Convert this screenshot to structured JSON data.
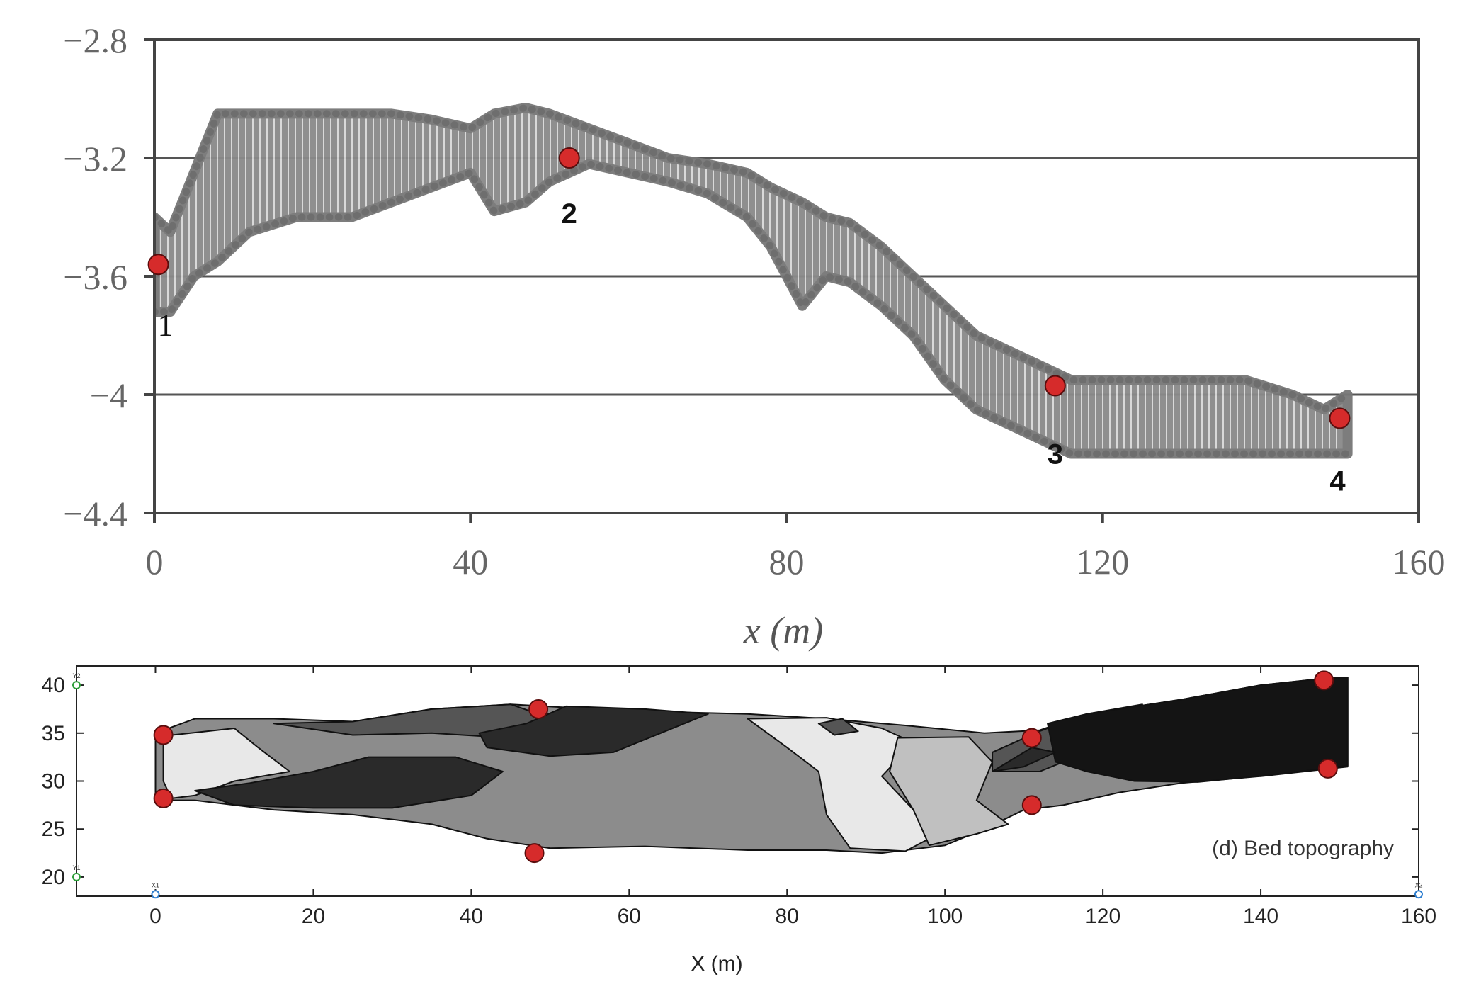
{
  "chart_data": [
    {
      "type": "scatter",
      "title": "",
      "xlabel": "x (m)",
      "ylabel": "",
      "xlim": [
        0,
        160
      ],
      "ylim": [
        -4.4,
        -2.8
      ],
      "x_ticks": [
        "0",
        "40",
        "80",
        "120",
        "160"
      ],
      "y_ticks": [
        "-2.8",
        "-3.2",
        "-3.6",
        "-4",
        "-4.4"
      ],
      "grid": "horizontal lines at -3.2, -3.6, -4",
      "profile": {
        "x": [
          0,
          2,
          5,
          8,
          12,
          18,
          25,
          30,
          35,
          40,
          43,
          47,
          50,
          55,
          60,
          65,
          70,
          75,
          78,
          82,
          85,
          88,
          92,
          96,
          100,
          104,
          108,
          112,
          116,
          120,
          126,
          132,
          138,
          144,
          148,
          151
        ],
        "upper": [
          -3.4,
          -3.45,
          -3.25,
          -3.05,
          -3.05,
          -3.05,
          -3.05,
          -3.05,
          -3.07,
          -3.1,
          -3.05,
          -3.03,
          -3.05,
          -3.1,
          -3.15,
          -3.2,
          -3.22,
          -3.25,
          -3.3,
          -3.35,
          -3.4,
          -3.42,
          -3.5,
          -3.6,
          -3.7,
          -3.8,
          -3.85,
          -3.9,
          -3.95,
          -3.95,
          -3.95,
          -3.95,
          -3.95,
          -4.0,
          -4.05,
          -4.0
        ],
        "lower": [
          -3.72,
          -3.72,
          -3.6,
          -3.55,
          -3.45,
          -3.4,
          -3.4,
          -3.35,
          -3.3,
          -3.25,
          -3.38,
          -3.35,
          -3.28,
          -3.22,
          -3.25,
          -3.28,
          -3.32,
          -3.4,
          -3.5,
          -3.7,
          -3.6,
          -3.62,
          -3.7,
          -3.8,
          -3.95,
          -4.05,
          -4.1,
          -4.15,
          -4.2,
          -4.2,
          -4.2,
          -4.2,
          -4.2,
          -4.2,
          -4.2,
          -4.2
        ]
      },
      "marked_points": [
        {
          "label": "1",
          "x": 0.5,
          "y": -3.56
        },
        {
          "label": "2",
          "x": 52.5,
          "y": -3.2
        },
        {
          "label": "3",
          "x": 114,
          "y": -3.97
        },
        {
          "label": "4",
          "x": 150,
          "y": -4.08
        }
      ],
      "marker_color": "#d62b2b",
      "fill_color": "#858585"
    },
    {
      "type": "heatmap",
      "title": "",
      "annotation": "(d) Bed topography",
      "xlabel": "X (m)",
      "ylabel": "",
      "xlim": [
        -10,
        160
      ],
      "ylim": [
        18,
        42
      ],
      "x_ticks": [
        "0",
        "20",
        "40",
        "60",
        "80",
        "100",
        "120",
        "140",
        "160"
      ],
      "y_ticks": [
        "20",
        "25",
        "30",
        "35",
        "40"
      ],
      "corner_labels": [
        "Y2",
        "Y1",
        "X1",
        "X2"
      ],
      "gray_levels": [
        "#e8e8e8",
        "#c0c0c0",
        "#8c8c8c",
        "#555555",
        "#2a2a2a",
        "#141414"
      ],
      "marked_points": [
        {
          "x": 1,
          "y": 34.8
        },
        {
          "x": 1,
          "y": 28.2
        },
        {
          "x": 48.5,
          "y": 37.5
        },
        {
          "x": 48,
          "y": 22.5
        },
        {
          "x": 111,
          "y": 34.5
        },
        {
          "x": 111,
          "y": 27.5
        },
        {
          "x": 148,
          "y": 40.5
        },
        {
          "x": 148.5,
          "y": 31.3
        }
      ]
    }
  ]
}
